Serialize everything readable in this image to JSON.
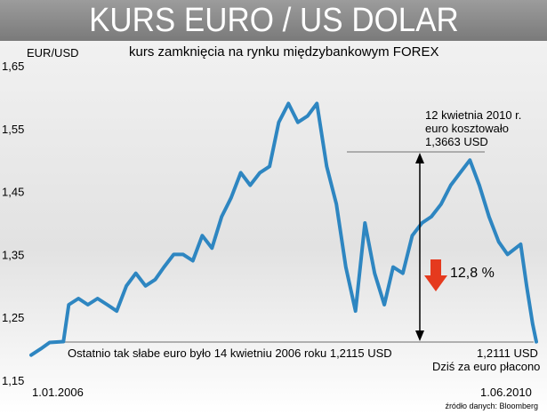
{
  "header": {
    "title": "KURS EURO / US DOLAR"
  },
  "chart_data": {
    "type": "line",
    "title": "KURS EURO / US DOLAR",
    "subtitle": "kurs zamknięcia na rynku międzybankowym FOREX",
    "ylabel": "EUR/USD",
    "xlabel": "",
    "ylim": [
      1.15,
      1.65
    ],
    "yticks": [
      "1,65",
      "1,55",
      "1,45",
      "1,35",
      "1,25",
      "1,15"
    ],
    "ytick_values": [
      1.65,
      1.55,
      1.45,
      1.35,
      1.25,
      1.15
    ],
    "x_start_label": "1.01.2006",
    "x_end_label": "1.06.2010",
    "grid": false,
    "series": [
      {
        "color": "#2e86c1",
        "points": [
          [
            "2006-01-01",
            1.19
          ],
          [
            "2006-02-01",
            1.2
          ],
          [
            "2006-03-01",
            1.21
          ],
          [
            "2006-04-14",
            1.2115
          ],
          [
            "2006-05-01",
            1.27
          ],
          [
            "2006-06-01",
            1.28
          ],
          [
            "2006-07-01",
            1.27
          ],
          [
            "2006-08-01",
            1.28
          ],
          [
            "2006-09-01",
            1.27
          ],
          [
            "2006-10-01",
            1.26
          ],
          [
            "2006-11-01",
            1.3
          ],
          [
            "2006-12-01",
            1.32
          ],
          [
            "2007-01-01",
            1.3
          ],
          [
            "2007-02-01",
            1.31
          ],
          [
            "2007-03-01",
            1.33
          ],
          [
            "2007-04-01",
            1.35
          ],
          [
            "2007-05-01",
            1.35
          ],
          [
            "2007-06-01",
            1.34
          ],
          [
            "2007-07-01",
            1.38
          ],
          [
            "2007-08-01",
            1.36
          ],
          [
            "2007-09-01",
            1.41
          ],
          [
            "2007-10-01",
            1.44
          ],
          [
            "2007-11-01",
            1.48
          ],
          [
            "2007-12-01",
            1.46
          ],
          [
            "2008-01-01",
            1.48
          ],
          [
            "2008-02-01",
            1.49
          ],
          [
            "2008-03-01",
            1.56
          ],
          [
            "2008-04-01",
            1.59
          ],
          [
            "2008-05-01",
            1.56
          ],
          [
            "2008-06-01",
            1.57
          ],
          [
            "2008-07-01",
            1.59
          ],
          [
            "2008-08-01",
            1.49
          ],
          [
            "2008-09-01",
            1.43
          ],
          [
            "2008-10-01",
            1.33
          ],
          [
            "2008-11-01",
            1.26
          ],
          [
            "2008-12-01",
            1.4
          ],
          [
            "2009-01-01",
            1.32
          ],
          [
            "2009-02-01",
            1.27
          ],
          [
            "2009-03-01",
            1.33
          ],
          [
            "2009-04-01",
            1.32
          ],
          [
            "2009-05-01",
            1.38
          ],
          [
            "2009-06-01",
            1.4
          ],
          [
            "2009-07-01",
            1.41
          ],
          [
            "2009-08-01",
            1.43
          ],
          [
            "2009-09-01",
            1.46
          ],
          [
            "2009-10-01",
            1.48
          ],
          [
            "2009-11-01",
            1.5
          ],
          [
            "2009-12-01",
            1.46
          ],
          [
            "2010-01-01",
            1.41
          ],
          [
            "2010-02-01",
            1.37
          ],
          [
            "2010-03-01",
            1.35
          ],
          [
            "2010-04-12",
            1.3663
          ],
          [
            "2010-05-01",
            1.3
          ],
          [
            "2010-05-20",
            1.24
          ],
          [
            "2010-06-01",
            1.2111
          ]
        ]
      }
    ],
    "annotations": {
      "peak_note": [
        "12 kwietnia 2010 r.",
        "euro kosztowało",
        "1,3663 USD"
      ],
      "change_label": "12,8 %",
      "low_note": "Ostatnio tak słabe euro było 14 kwietniu 2006 roku 1,2115 USD",
      "end_value": "1,2111 USD",
      "end_note": "Dziś za euro płacono"
    },
    "colors": {
      "line": "#2e86c1",
      "arrow_down": "#e53a1e",
      "ref_line": "#999999"
    },
    "source": "źródło danych: Bloomberg"
  }
}
